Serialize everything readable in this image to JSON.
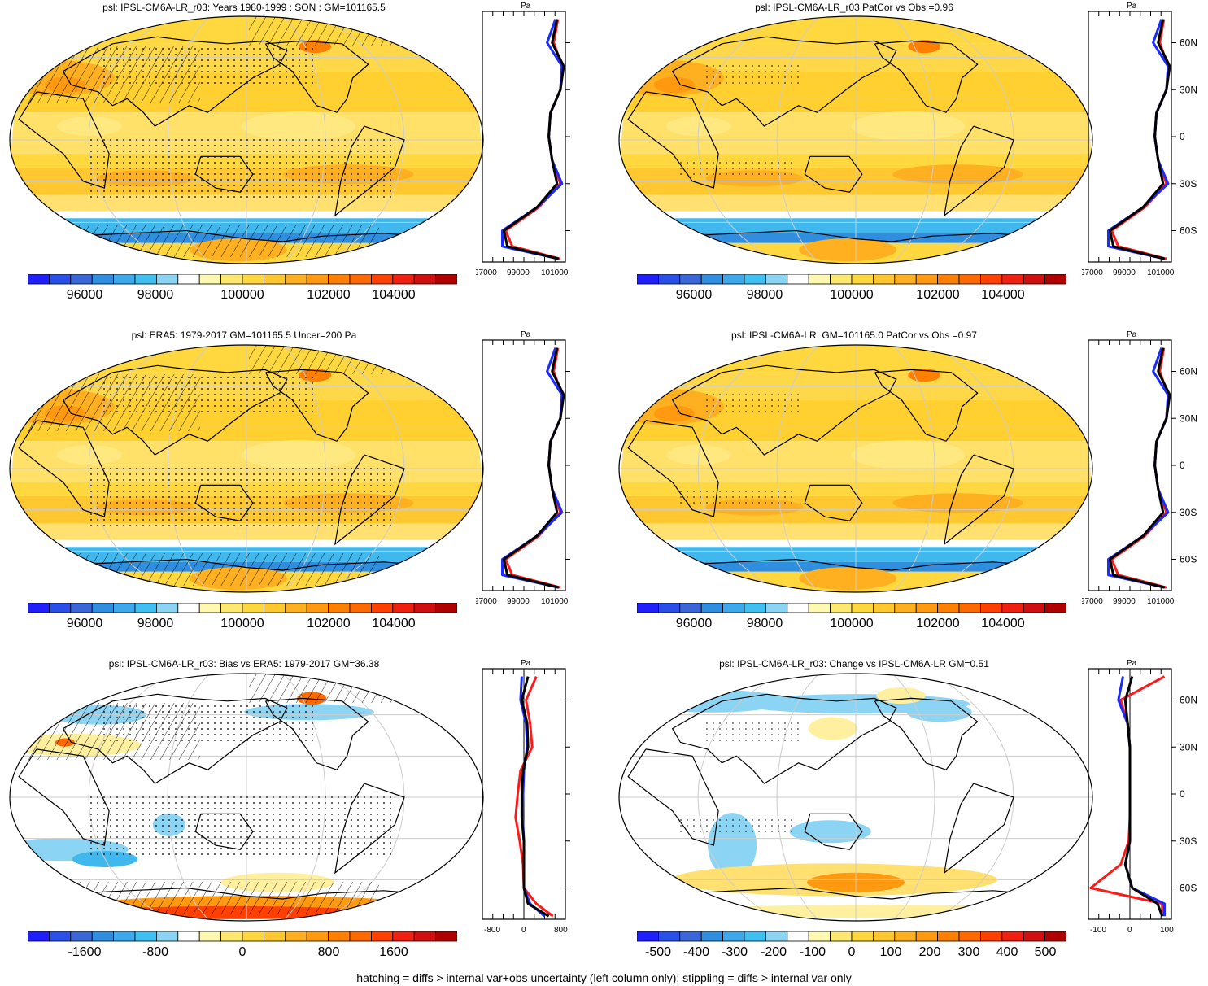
{
  "panels": [
    {
      "title": "psl: IPSL-CM6A-LR_r03: Years 1980-1999 : SON : GM=101165.5",
      "scheme": "abs",
      "hatch": true,
      "stipple": "heavy",
      "profile": {
        "xmin": 97000,
        "xmax": 102000,
        "ticks": [
          "97000",
          "99000",
          "101000"
        ],
        "zero": false
      }
    },
    {
      "title": "psl: IPSL-CM6A-LR_r03 PatCor vs Obs =0.96",
      "scheme": "abs",
      "hatch": false,
      "stipple": "light",
      "profile": {
        "xmin": 97000,
        "xmax": 102000,
        "ticks": [
          "97000",
          "99000",
          "101000"
        ],
        "zero": false
      }
    },
    {
      "title": "psl: ERA5: 1979-2017 GM=101165.5 Uncer=200 Pa",
      "scheme": "abs",
      "hatch": true,
      "stipple": "heavy",
      "profile": {
        "xmin": 97000,
        "xmax": 102000,
        "ticks": [
          "97000",
          "99000",
          "101000"
        ],
        "zero": false
      }
    },
    {
      "title": "psl: IPSL-CM6A-LR: GM=101165.0 PatCor vs Obs =0.97",
      "scheme": "abs",
      "hatch": false,
      "stipple": "light",
      "profile": {
        "xmin": 97000,
        "xmax": 102000,
        "ticks": [
          "97000",
          "99000",
          "101000"
        ],
        "zero": false
      }
    },
    {
      "title": "psl: IPSL-CM6A-LR_r03: Bias vs ERA5: 1979-2017  GM=36.38",
      "scheme": "bias",
      "hatch": true,
      "stipple": "heavy",
      "profile": {
        "xmin": -1000,
        "xmax": 1000,
        "ticks": [
          "-800",
          "0",
          "800"
        ],
        "zero": true
      }
    },
    {
      "title": "psl: IPSL-CM6A-LR_r03: Change vs IPSL-CM6A-LR GM=0.51",
      "scheme": "change",
      "hatch": false,
      "stipple": "light",
      "profile": {
        "xmin": -180,
        "xmax": 180,
        "ticks": [
          "-100",
          "0",
          "100"
        ],
        "zero": true
      }
    }
  ],
  "profile_axis": {
    "unit": "Pa",
    "lat_labels": [
      "60N",
      "30N",
      "0",
      "30S",
      "60S"
    ],
    "lat_values": [
      60,
      30,
      0,
      -30,
      -60
    ]
  },
  "colorbars": {
    "abs": {
      "labels": [
        "96000",
        "98000",
        "100000",
        "102000",
        "104000"
      ],
      "colors": [
        "#2020ff",
        "#2a4fe8",
        "#3a66d8",
        "#2f8ee0",
        "#3ea8ec",
        "#40c0f0",
        "#8cd4f4",
        "#ffffff",
        "#fff8b0",
        "#ffe870",
        "#ffd840",
        "#ffc830",
        "#ffb020",
        "#ff9a10",
        "#ff8000",
        "#ff6a00",
        "#ff4000",
        "#f02010",
        "#d01010",
        "#b00000"
      ]
    },
    "bias": {
      "labels": [
        "-1600",
        "-800",
        "0",
        "800",
        "1600"
      ],
      "colors": [
        "#2020ff",
        "#2a4fe8",
        "#3a66d8",
        "#2f8ee0",
        "#3ea8ec",
        "#40c0f0",
        "#8cd4f4",
        "#ffffff",
        "#fff8b0",
        "#ffe870",
        "#ffd840",
        "#ffc830",
        "#ffb020",
        "#ff9a10",
        "#ff8000",
        "#ff6a00",
        "#ff4000",
        "#f02010",
        "#d01010",
        "#b00000"
      ]
    },
    "change": {
      "labels": [
        "-500",
        "-400",
        "-300",
        "-200",
        "-100",
        "0",
        "100",
        "200",
        "300",
        "400",
        "500"
      ],
      "colors": [
        "#2020ff",
        "#2a4fe8",
        "#3a66d8",
        "#2f8ee0",
        "#3ea8ec",
        "#40c0f0",
        "#8cd4f4",
        "#ffffff",
        "#fff8b0",
        "#ffe870",
        "#ffd840",
        "#ffc830",
        "#ffb020",
        "#ff9a10",
        "#ff8000",
        "#ff6a00",
        "#ff4000",
        "#f02010",
        "#d01010",
        "#b00000"
      ]
    }
  },
  "footnote": "hatching = diffs > internal var+obs uncertainty (left column only); stippling = diffs > internal var only",
  "chart_data": [
    {
      "type": "heatmap",
      "title": "psl: IPSL-CM6A-LR_r03: Years 1980-1999 : SON : GM=101165.5",
      "colorbar_range": [
        95000,
        105000
      ],
      "colorbar_ticks": [
        96000,
        98000,
        100000,
        102000,
        104000
      ],
      "zonal_mean_profile": {
        "lat": [
          75,
          60,
          45,
          30,
          15,
          0,
          -15,
          -30,
          -45,
          -60,
          -70
        ],
        "model": [
          101600,
          101300,
          101900,
          101700,
          101100,
          101000,
          101200,
          101500,
          100300,
          98300,
          98500
        ],
        "obs": [
          101550,
          101200,
          101800,
          101700,
          101100,
          101000,
          101200,
          101700,
          100400,
          98400,
          98600
        ],
        "xunit": "Pa"
      }
    },
    {
      "type": "heatmap",
      "title": "psl: IPSL-CM6A-LR_r03 PatCor vs Obs =0.96",
      "colorbar_range": [
        95000,
        105000
      ],
      "colorbar_ticks": [
        96000,
        98000,
        100000,
        102000,
        104000
      ]
    },
    {
      "type": "heatmap",
      "title": "psl: ERA5: 1979-2017 GM=101165.5 Uncer=200 Pa",
      "colorbar_range": [
        95000,
        105000
      ],
      "colorbar_ticks": [
        96000,
        98000,
        100000,
        102000,
        104000
      ]
    },
    {
      "type": "heatmap",
      "title": "psl: IPSL-CM6A-LR: GM=101165.0 PatCor vs Obs =0.97",
      "colorbar_range": [
        95000,
        105000
      ],
      "colorbar_ticks": [
        96000,
        98000,
        100000,
        102000,
        104000
      ]
    },
    {
      "type": "heatmap",
      "title": "psl: IPSL-CM6A-LR_r03: Bias vs ERA5: 1979-2017  GM=36.38",
      "colorbar_range": [
        -2000,
        2000
      ],
      "colorbar_ticks": [
        -1600,
        -800,
        0,
        800,
        1600
      ],
      "zonal_mean_profile": {
        "lat": [
          75,
          60,
          45,
          30,
          15,
          0,
          -15,
          -30,
          -45,
          -60,
          -70
        ],
        "diff": [
          300,
          -50,
          100,
          200,
          -50,
          -100,
          -100,
          -50,
          0,
          0,
          300
        ],
        "xunit": "Pa"
      }
    },
    {
      "type": "heatmap",
      "title": "psl: IPSL-CM6A-LR_r03: Change vs IPSL-CM6A-LR GM=0.51",
      "colorbar_range": [
        -550,
        550
      ],
      "colorbar_ticks": [
        -500,
        -400,
        -300,
        -200,
        -100,
        0,
        100,
        200,
        300,
        400,
        500
      ],
      "zonal_mean_profile": {
        "lat": [
          75,
          60,
          45,
          30,
          15,
          0,
          -15,
          -30,
          -45,
          -60,
          -70
        ],
        "diff": [
          120,
          -40,
          -10,
          0,
          0,
          0,
          0,
          0,
          -20,
          -160,
          140
        ],
        "xunit": "Pa"
      }
    }
  ]
}
